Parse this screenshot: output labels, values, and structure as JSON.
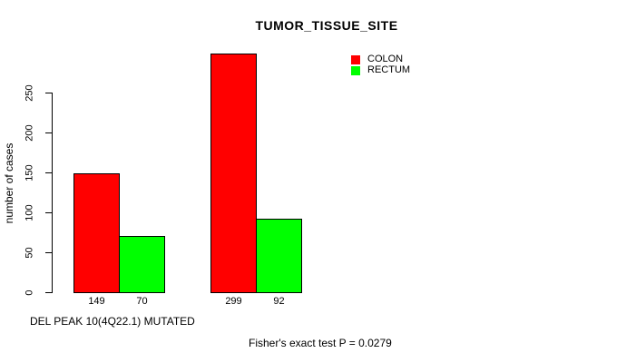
{
  "title": "TUMOR_TISSUE_SITE",
  "footer_note": "Fisher's exact test P = 0.0279",
  "chart_data": {
    "type": "bar",
    "title": "TUMOR_TISSUE_SITE",
    "xlabel": "DEL PEAK 10(4Q22.1) MUTATED",
    "ylabel": "number of cases",
    "ylim": [
      0,
      250
    ],
    "yticks": [
      0,
      50,
      100,
      150,
      200,
      250
    ],
    "grid": false,
    "legend_position": "top-right",
    "categories": [
      "",
      ""
    ],
    "series": [
      {
        "name": "COLON",
        "color": "#FF0000",
        "values": [
          149,
          299
        ]
      },
      {
        "name": "RECTUM",
        "color": "#00FF00",
        "values": [
          70,
          92
        ]
      }
    ],
    "bar_value_labels": [
      [
        "149",
        "70"
      ],
      [
        "299",
        "92"
      ]
    ],
    "annotation": "Fisher's exact test P = 0.0279",
    "bar_border_color": "#000000",
    "background_color": "#FFFFFF"
  }
}
